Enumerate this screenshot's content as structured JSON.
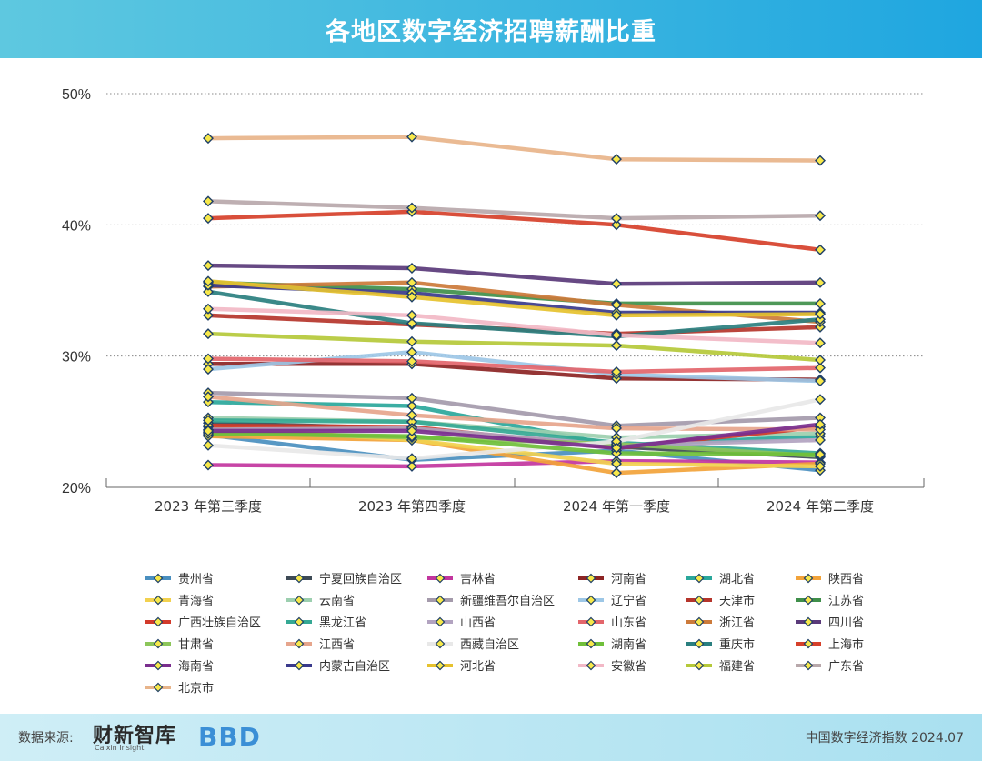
{
  "header": {
    "title": "各地区数字经济招聘薪酬比重"
  },
  "footer": {
    "source_label": "数据来源:",
    "logo_cn": "财新智库",
    "logo_en": "Caixin Insight",
    "logo_bbd": "BBD",
    "note": "中国数字经济指数 2024.07"
  },
  "chart_data": {
    "type": "line",
    "title": "各地区数字经济招聘薪酬比重",
    "xlabel": "",
    "ylabel": "",
    "ylim": [
      20,
      50
    ],
    "yticks": [
      20,
      30,
      40,
      50
    ],
    "ytick_labels": [
      "20%",
      "30%",
      "40%",
      "50%"
    ],
    "categories": [
      "2023 年第三季度",
      "2023 年第四季度",
      "2024 年第一季度",
      "2024 年第二季度"
    ],
    "legend_position": "bottom",
    "series": [
      {
        "name": "贵州省",
        "color": "#4a8fbf",
        "values": [
          24.0,
          22.1,
          22.8,
          21.3
        ]
      },
      {
        "name": "宁夏回族自治区",
        "color": "#3d4a55",
        "values": [
          24.9,
          24.5,
          23.1,
          22.3
        ]
      },
      {
        "name": "吉林省",
        "color": "#c2359e",
        "values": [
          21.7,
          21.6,
          22.0,
          21.9
        ]
      },
      {
        "name": "河南省",
        "color": "#8c2424",
        "values": [
          29.4,
          29.4,
          28.3,
          28.2
        ]
      },
      {
        "name": "湖北省",
        "color": "#2aa79b",
        "values": [
          26.5,
          26.2,
          23.2,
          23.9
        ]
      },
      {
        "name": "陕西省",
        "color": "#f2a33a",
        "values": [
          23.9,
          23.6,
          21.1,
          21.8
        ]
      },
      {
        "name": "青海省",
        "color": "#f2d14f",
        "values": [
          24.6,
          23.6,
          21.8,
          21.6
        ]
      },
      {
        "name": "云南省",
        "color": "#9ccfaf",
        "values": [
          25.3,
          25.0,
          23.8,
          24.1
        ]
      },
      {
        "name": "新疆维吾尔自治区",
        "color": "#a49aab",
        "values": [
          27.2,
          26.8,
          24.7,
          25.3
        ]
      },
      {
        "name": "辽宁省",
        "color": "#9dc7e6",
        "values": [
          29.0,
          30.3,
          28.6,
          28.1
        ]
      },
      {
        "name": "天津市",
        "color": "#b5352b",
        "values": [
          33.1,
          32.4,
          31.7,
          32.2
        ]
      },
      {
        "name": "江苏省",
        "color": "#3f8f4a",
        "values": [
          35.6,
          35.1,
          34.0,
          34.0
        ]
      },
      {
        "name": "广西壮族自治区",
        "color": "#d23a2a",
        "values": [
          24.7,
          24.6,
          23.0,
          24.6
        ]
      },
      {
        "name": "黑龙江省",
        "color": "#35a894",
        "values": [
          25.1,
          25.0,
          23.4,
          22.6
        ]
      },
      {
        "name": "山西省",
        "color": "#b2a3c0",
        "values": [
          24.4,
          24.5,
          23.2,
          23.6
        ]
      },
      {
        "name": "山东省",
        "color": "#e3656b",
        "values": [
          29.8,
          29.6,
          28.8,
          29.1
        ]
      },
      {
        "name": "浙江省",
        "color": "#cc7a3a",
        "values": [
          35.3,
          35.6,
          33.9,
          32.6
        ]
      },
      {
        "name": "四川省",
        "color": "#5a3a7a",
        "values": [
          36.9,
          36.7,
          35.5,
          35.6
        ]
      },
      {
        "name": "甘肃省",
        "color": "#8cc65a",
        "values": [
          24.2,
          23.8,
          23.3,
          22.4
        ]
      },
      {
        "name": "江西省",
        "color": "#e6a58c",
        "values": [
          26.9,
          25.5,
          24.5,
          24.4
        ]
      },
      {
        "name": "西藏自治区",
        "color": "#e8e8e8",
        "values": [
          23.2,
          22.2,
          23.5,
          26.7
        ]
      },
      {
        "name": "湖南省",
        "color": "#6fbf3a",
        "values": [
          24.1,
          23.9,
          22.6,
          22.5
        ]
      },
      {
        "name": "重庆市",
        "color": "#2a7f7f",
        "values": [
          34.9,
          32.5,
          31.5,
          32.8
        ]
      },
      {
        "name": "上海市",
        "color": "#d6402a",
        "values": [
          40.5,
          41.0,
          40.0,
          38.1
        ]
      },
      {
        "name": "海南省",
        "color": "#7a2e8e",
        "values": [
          24.3,
          24.3,
          23.0,
          24.8
        ]
      },
      {
        "name": "内蒙古自治区",
        "color": "#3a3a8c",
        "values": [
          35.4,
          34.8,
          33.3,
          33.3
        ]
      },
      {
        "name": "河北省",
        "color": "#e6c22e",
        "values": [
          35.7,
          34.5,
          33.1,
          33.2
        ]
      },
      {
        "name": "安徽省",
        "color": "#f2b8c6",
        "values": [
          33.6,
          33.1,
          31.6,
          31.0
        ]
      },
      {
        "name": "福建省",
        "color": "#b5c93a",
        "values": [
          31.7,
          31.1,
          30.8,
          29.7
        ]
      },
      {
        "name": "广东省",
        "color": "#b8a8ab",
        "values": [
          41.8,
          41.3,
          40.5,
          40.7
        ]
      },
      {
        "name": "北京市",
        "color": "#e8b48a",
        "values": [
          46.6,
          46.7,
          45.0,
          44.9
        ]
      }
    ]
  }
}
